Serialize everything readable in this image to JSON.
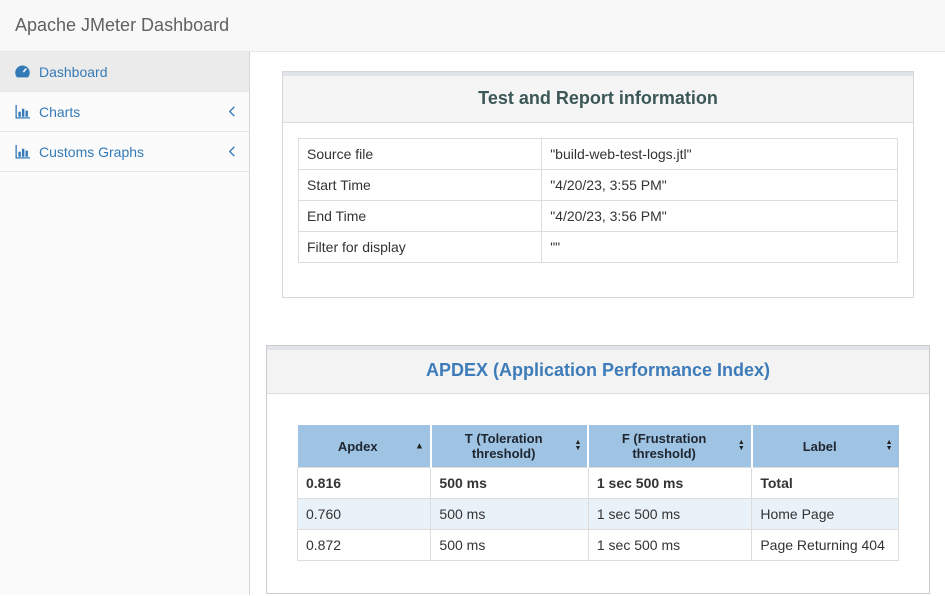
{
  "header": {
    "title": "Apache JMeter Dashboard"
  },
  "sidebar": {
    "items": [
      {
        "label": "Dashboard",
        "icon": "gauge-icon",
        "active": true,
        "chevron": false
      },
      {
        "label": "Charts",
        "icon": "bar-chart-icon",
        "active": false,
        "chevron": true
      },
      {
        "label": "Customs Graphs",
        "icon": "bar-chart-icon",
        "active": false,
        "chevron": true
      }
    ],
    "chevron_icon": "chevron-left-icon"
  },
  "info_panel": {
    "title": "Test and Report information",
    "rows": [
      {
        "label": "Source file",
        "value": "\"build-web-test-logs.jtl\""
      },
      {
        "label": "Start Time",
        "value": "\"4/20/23, 3:55 PM\""
      },
      {
        "label": "End Time",
        "value": "\"4/20/23, 3:56 PM\""
      },
      {
        "label": "Filter for display",
        "value": "\"\""
      }
    ]
  },
  "apdex_panel": {
    "title": "APDEX (Application Performance Index)",
    "table": {
      "columns": [
        {
          "label": "Apdex",
          "sort": "asc"
        },
        {
          "label": "T (Toleration threshold)",
          "sort": "both"
        },
        {
          "label": "F (Frustration threshold)",
          "sort": "both"
        },
        {
          "label": "Label",
          "sort": "both"
        }
      ],
      "rows": [
        {
          "cells": [
            "0.816",
            "500 ms",
            "1 sec 500 ms",
            "Total"
          ],
          "bold": true,
          "striped": false
        },
        {
          "cells": [
            "0.760",
            "500 ms",
            "1 sec 500 ms",
            "Home Page"
          ],
          "bold": false,
          "striped": true
        },
        {
          "cells": [
            "0.872",
            "500 ms",
            "1 sec 500 ms",
            "Page Returning 404"
          ],
          "bold": false,
          "striped": false
        }
      ]
    }
  },
  "icons": {
    "gauge-icon": "tachometer gauge",
    "bar-chart-icon": "vertical bar chart with axis",
    "chevron-left-icon": "‹",
    "sort-asc": "▲",
    "sort-both": "▲▼"
  },
  "colors": {
    "accent_link": "#337ab7",
    "info_title": "#3c5757",
    "apdex_title": "#3e7cb9",
    "table_header_bg": "#9fc3e3",
    "row_stripe": "#e9f1f9",
    "topbar_bg": "#f8f8f8",
    "panel_heading_bg": "#f5f5f5"
  }
}
